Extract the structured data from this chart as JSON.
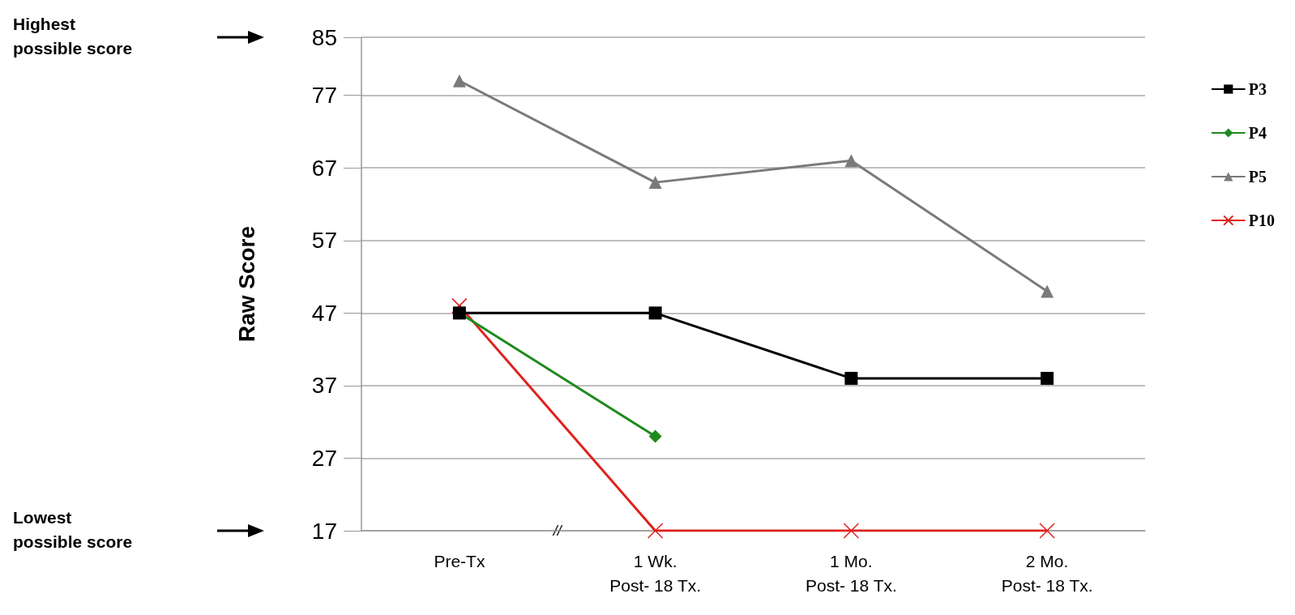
{
  "chart_data": {
    "type": "line",
    "ylabel": "Raw Score",
    "categories": [
      "Pre-Tx",
      "1 Wk.\nPost- 18 Tx.",
      "1 Mo.\nPost- 18 Tx.",
      "2 Mo.\nPost- 18 Tx."
    ],
    "series": [
      {
        "name": "P3",
        "color": "#000000",
        "marker": "square",
        "values": [
          47,
          47,
          38,
          38
        ]
      },
      {
        "name": "P4",
        "color": "#1e8a1e",
        "marker": "diamond",
        "values": [
          47,
          30,
          null,
          null
        ]
      },
      {
        "name": "P5",
        "color": "#7a7a7a",
        "marker": "triangle",
        "values": [
          79,
          65,
          68,
          50
        ]
      },
      {
        "name": "P10",
        "color": "#e0201b",
        "marker": "cross",
        "values": [
          48,
          17,
          17,
          17
        ]
      }
    ],
    "ylim": [
      17,
      85
    ],
    "yticks": [
      17,
      27,
      37,
      47,
      57,
      67,
      77,
      85
    ],
    "grid": "y",
    "legend": "right",
    "line_style": "solid",
    "annotations": [
      "Highest\npossible score",
      "Lowest\npossible score",
      "//"
    ]
  }
}
